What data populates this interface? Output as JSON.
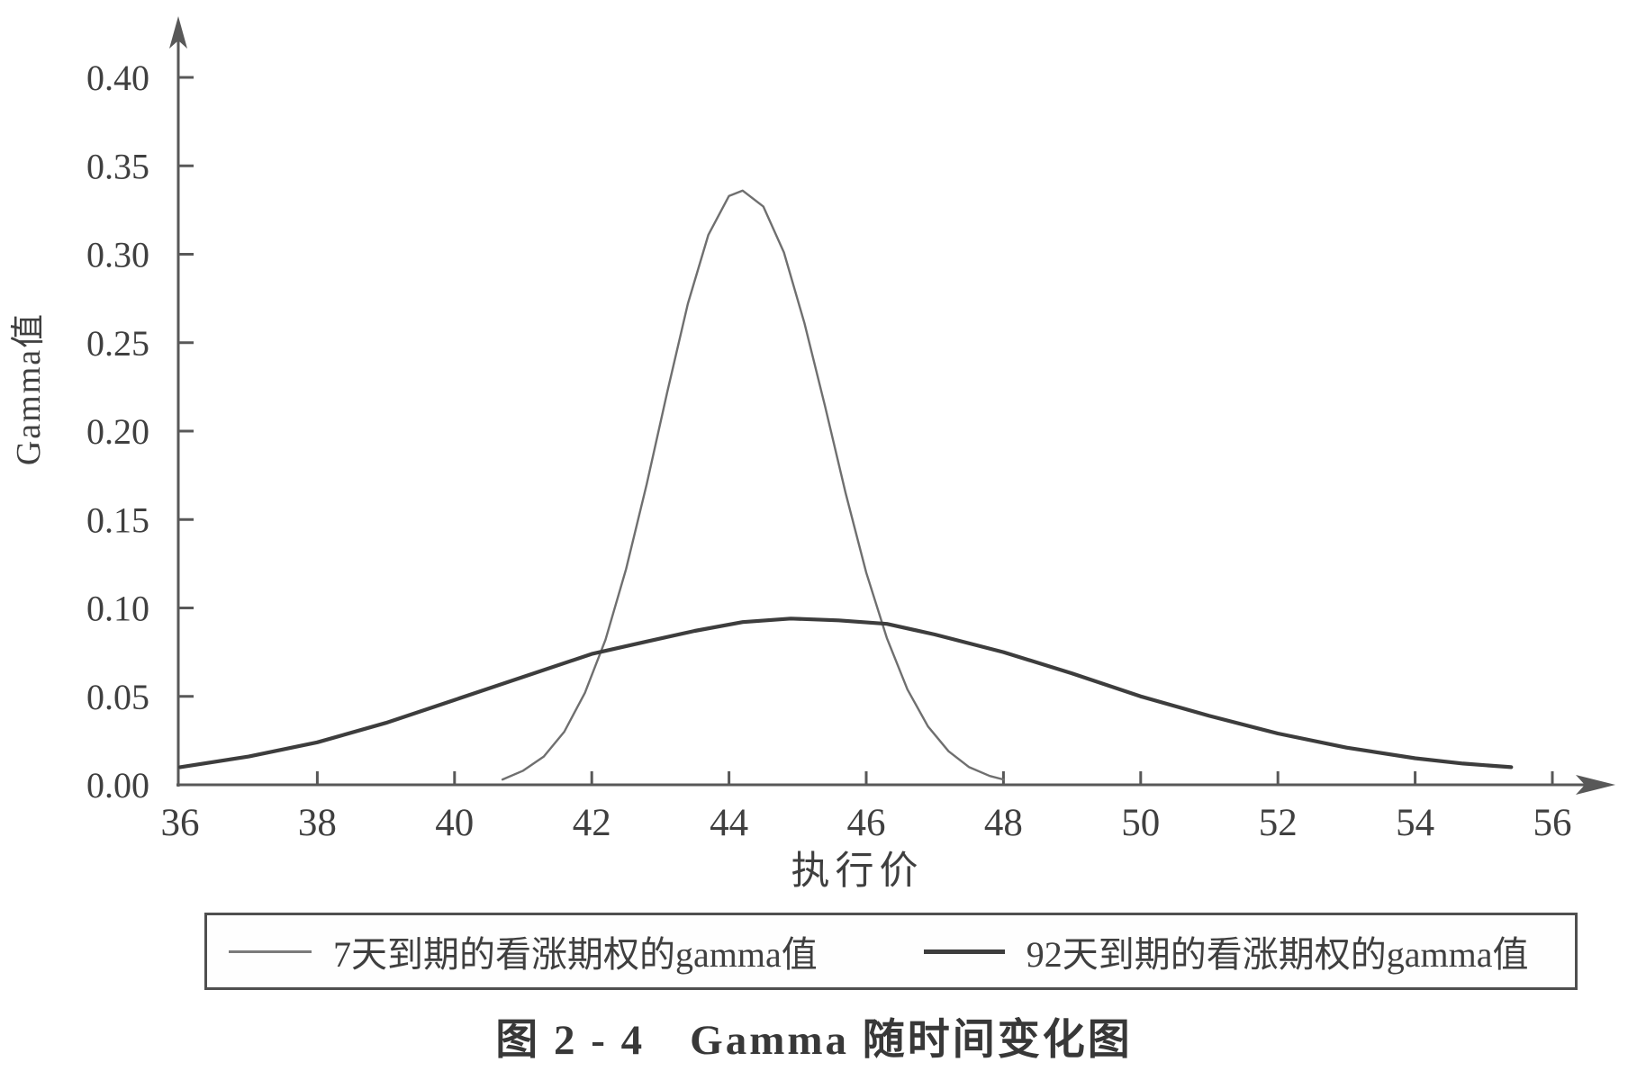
{
  "figure_caption": "图 2 - 4　Gamma 随时间变化图",
  "colors": {
    "background": "#ffffff",
    "ink": "#3f3f3f",
    "axis": "#585858",
    "series_7day": "#6f6f6f",
    "series_92day": "#3d3d3d"
  },
  "chart_data": {
    "type": "line",
    "title": "",
    "xlabel": "执行价",
    "ylabel": "Gamma值",
    "xlim": [
      36,
      56
    ],
    "ylim": [
      0,
      0.4
    ],
    "grid": false,
    "legend_position": "bottom-boxed",
    "x_tick_values": [
      36,
      38,
      40,
      42,
      44,
      46,
      48,
      50,
      52,
      54,
      56
    ],
    "x_tick_labels": [
      "36",
      "38",
      "40",
      "42",
      "44",
      "46",
      "48",
      "50",
      "52",
      "54",
      "56"
    ],
    "y_tick_values": [
      0.0,
      0.05,
      0.1,
      0.15,
      0.2,
      0.25,
      0.3,
      0.35,
      0.4
    ],
    "y_tick_labels": [
      "0.00",
      "0.05",
      "0.10",
      "0.15",
      "0.20",
      "0.25",
      "0.30",
      "0.35",
      "0.40"
    ],
    "series": [
      {
        "name": "7天到期的看涨期权的gamma值",
        "color": "#6f6f6f",
        "stroke_width": 2.4,
        "peak": {
          "x": 44.2,
          "y": 0.336
        },
        "x": [
          40.7,
          41.0,
          41.3,
          41.6,
          41.9,
          42.2,
          42.5,
          42.8,
          43.1,
          43.4,
          43.7,
          44.0,
          44.2,
          44.5,
          44.8,
          45.1,
          45.4,
          45.7,
          46.0,
          46.3,
          46.6,
          46.9,
          47.2,
          47.5,
          47.8,
          48.0
        ],
        "y": [
          0.003,
          0.008,
          0.016,
          0.03,
          0.052,
          0.082,
          0.122,
          0.17,
          0.222,
          0.272,
          0.311,
          0.333,
          0.336,
          0.327,
          0.301,
          0.261,
          0.214,
          0.165,
          0.12,
          0.083,
          0.054,
          0.033,
          0.019,
          0.01,
          0.005,
          0.003
        ]
      },
      {
        "name": "92天到期的看涨期权的gamma值",
        "color": "#3d3d3d",
        "stroke_width": 4.2,
        "peak": {
          "x": 44.9,
          "y": 0.094
        },
        "x": [
          36.0,
          37.0,
          38.0,
          39.0,
          40.0,
          41.0,
          42.0,
          42.8,
          43.5,
          44.2,
          44.9,
          45.6,
          46.3,
          47.0,
          48.0,
          49.0,
          50.0,
          51.0,
          52.0,
          53.0,
          54.0,
          54.7,
          55.4
        ],
        "y": [
          0.01,
          0.016,
          0.024,
          0.035,
          0.048,
          0.061,
          0.074,
          0.081,
          0.087,
          0.092,
          0.094,
          0.093,
          0.091,
          0.085,
          0.075,
          0.063,
          0.05,
          0.039,
          0.029,
          0.021,
          0.015,
          0.012,
          0.01
        ]
      }
    ]
  },
  "legend": {
    "items": [
      {
        "swatch": "thin-line",
        "label": "7天到期的看涨期权的gamma值"
      },
      {
        "swatch": "thick-line",
        "label": "92天到期的看涨期权的gamma值"
      }
    ]
  }
}
